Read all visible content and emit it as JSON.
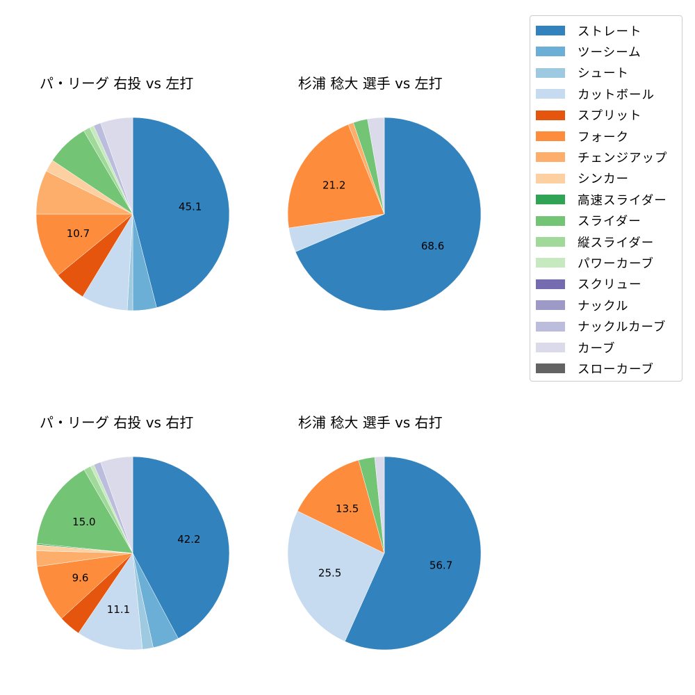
{
  "legend": {
    "items": [
      {
        "label": "ストレート",
        "color": "#3182bd"
      },
      {
        "label": "ツーシーム",
        "color": "#6baed6"
      },
      {
        "label": "シュート",
        "color": "#9ecae1"
      },
      {
        "label": "カットボール",
        "color": "#c6dbef"
      },
      {
        "label": "スプリット",
        "color": "#e6550d"
      },
      {
        "label": "フォーク",
        "color": "#fd8d3c"
      },
      {
        "label": "チェンジアップ",
        "color": "#fdae6b"
      },
      {
        "label": "シンカー",
        "color": "#fdd0a2"
      },
      {
        "label": "高速スライダー",
        "color": "#31a354"
      },
      {
        "label": "スライダー",
        "color": "#74c476"
      },
      {
        "label": "縦スライダー",
        "color": "#a1d99b"
      },
      {
        "label": "パワーカーブ",
        "color": "#c7e9c0"
      },
      {
        "label": "スクリュー",
        "color": "#756bb1"
      },
      {
        "label": "ナックル",
        "color": "#9e9ac8"
      },
      {
        "label": "ナックルカーブ",
        "color": "#bcbddc"
      },
      {
        "label": "カーブ",
        "color": "#dadaeb"
      },
      {
        "label": "スローカーブ",
        "color": "#636363"
      }
    ]
  },
  "panels": [
    {
      "title": "パ・リーグ 右投 vs 左打"
    },
    {
      "title": "杉浦 稔大 選手 vs 左打"
    },
    {
      "title": "パ・リーグ 右投 vs 右打"
    },
    {
      "title": "杉浦 稔大 選手 vs 右打"
    }
  ],
  "chart_data": [
    {
      "type": "pie",
      "title": "パ・リーグ 右投 vs 左打",
      "start_angle": 90,
      "direction": "clockwise",
      "categories": [
        "ストレート",
        "ツーシーム",
        "シュート",
        "カットボール",
        "スプリット",
        "フォーク",
        "チェンジアップ",
        "シンカー",
        "高速スライダー",
        "スライダー",
        "縦スライダー",
        "パワーカーブ",
        "スクリュー",
        "ナックル",
        "ナックルカーブ",
        "カーブ",
        "スローカーブ"
      ],
      "values": [
        45.1,
        3.9,
        0.9,
        7.6,
        5.3,
        10.7,
        7.2,
        2.0,
        0.0,
        7.0,
        1.1,
        0.7,
        0.0,
        0.0,
        1.2,
        5.3,
        0.0
      ],
      "labels_shown": {
        "ストレート": "45.1",
        "フォーク": "10.7"
      }
    },
    {
      "type": "pie",
      "title": "杉浦 稔大 選手 vs 左打",
      "start_angle": 90,
      "direction": "clockwise",
      "categories": [
        "ストレート",
        "ツーシーム",
        "シュート",
        "カットボール",
        "スプリット",
        "フォーク",
        "チェンジアップ",
        "シンカー",
        "高速スライダー",
        "スライダー",
        "縦スライダー",
        "パワーカーブ",
        "スクリュー",
        "ナックル",
        "ナックルカーブ",
        "カーブ",
        "スローカーブ"
      ],
      "values": [
        68.6,
        0.0,
        0.0,
        4.1,
        0.0,
        21.2,
        0.9,
        0.0,
        0.0,
        2.4,
        0.0,
        0.0,
        0.0,
        0.0,
        0.0,
        2.8,
        0.0
      ],
      "labels_shown": {
        "ストレート": "68.6",
        "フォーク": "21.2"
      }
    },
    {
      "type": "pie",
      "title": "パ・リーグ 右投 vs 右打",
      "start_angle": 90,
      "direction": "clockwise",
      "categories": [
        "ストレート",
        "ツーシーム",
        "シュート",
        "カットボール",
        "スプリット",
        "フォーク",
        "チェンジアップ",
        "シンカー",
        "高速スライダー",
        "スライダー",
        "縦スライダー",
        "パワーカーブ",
        "スクリュー",
        "ナックル",
        "ナックルカーブ",
        "カーブ",
        "スローカーブ"
      ],
      "values": [
        42.2,
        4.4,
        1.8,
        11.1,
        3.7,
        9.6,
        2.6,
        1.0,
        0.2,
        15.0,
        1.2,
        0.6,
        0.0,
        0.0,
        1.2,
        5.4,
        0.0
      ],
      "labels_shown": {
        "ストレート": "42.2",
        "カットボール": "11.1",
        "フォーク": "9.6",
        "スライダー": "15.0"
      }
    },
    {
      "type": "pie",
      "title": "杉浦 稔大 選手 vs 右打",
      "start_angle": 90,
      "direction": "clockwise",
      "categories": [
        "ストレート",
        "ツーシーム",
        "シュート",
        "カットボール",
        "スプリット",
        "フォーク",
        "チェンジアップ",
        "シンカー",
        "高速スライダー",
        "スライダー",
        "縦スライダー",
        "パワーカーブ",
        "スクリュー",
        "ナックル",
        "ナックルカーブ",
        "カーブ",
        "スローカーブ"
      ],
      "values": [
        56.7,
        0.0,
        0.0,
        25.5,
        0.0,
        13.5,
        0.0,
        0.0,
        0.0,
        2.7,
        0.0,
        0.0,
        0.0,
        0.0,
        0.0,
        1.6,
        0.0
      ],
      "labels_shown": {
        "ストレート": "56.7",
        "カットボール": "25.5",
        "フォーク": "13.5"
      }
    }
  ]
}
